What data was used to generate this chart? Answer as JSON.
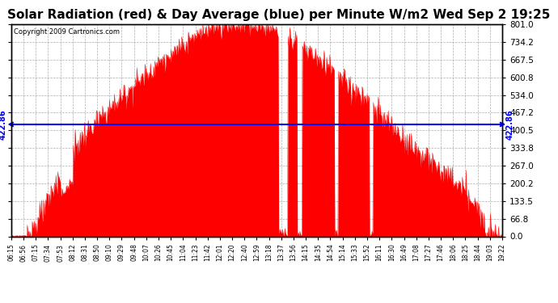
{
  "title": "Solar Radiation (red) & Day Average (blue) per Minute W/m2 Wed Sep 2 19:25",
  "copyright": "Copyright 2009 Cartronics.com",
  "avg_value": 422.86,
  "y_max": 801.0,
  "y_min": 0.0,
  "y_ticks": [
    0.0,
    66.8,
    133.5,
    200.2,
    267.0,
    333.8,
    400.5,
    467.2,
    534.0,
    600.8,
    667.5,
    734.2,
    801.0
  ],
  "x_tick_labels": [
    "06:15",
    "06:56",
    "07:15",
    "07:34",
    "07:53",
    "08:12",
    "08:31",
    "08:50",
    "09:10",
    "09:29",
    "09:48",
    "10:07",
    "10:26",
    "10:45",
    "11:04",
    "11:23",
    "11:42",
    "12:01",
    "12:20",
    "12:40",
    "12:59",
    "13:18",
    "13:37",
    "13:56",
    "14:15",
    "14:35",
    "14:54",
    "15:14",
    "15:33",
    "15:52",
    "16:11",
    "16:30",
    "16:49",
    "17:08",
    "17:27",
    "17:46",
    "18:06",
    "18:25",
    "18:44",
    "19:03",
    "19:22"
  ],
  "area_color": "#FF0000",
  "line_color": "#0000FF",
  "background_color": "#FFFFFF",
  "grid_color": "#999999",
  "title_fontsize": 11,
  "avg_label": "422.86",
  "n_points": 790
}
